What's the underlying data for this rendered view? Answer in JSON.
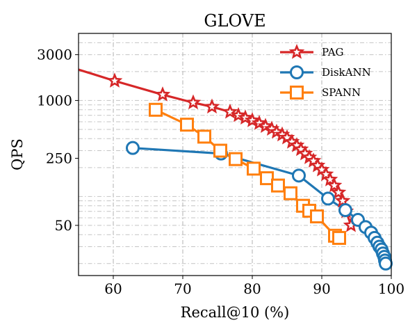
{
  "chart_data": {
    "type": "line",
    "title": "GLOVE",
    "xlabel": "Recall@10 (%)",
    "ylabel": "QPS",
    "xlim": [
      55,
      100
    ],
    "ylim": [
      15,
      5000
    ],
    "yscale": "log",
    "xticks": [
      60,
      70,
      80,
      90,
      100
    ],
    "yticks": [
      {
        "value": 50,
        "label": "50"
      },
      {
        "value": 250,
        "label": "250"
      },
      {
        "value": 1000,
        "label": "1000"
      },
      {
        "value": 3000,
        "label": "3000"
      }
    ],
    "grid": true,
    "legend_position": "top-right",
    "series": [
      {
        "name": "PAG",
        "color": "#d62728",
        "marker": "star",
        "line_start": [
          55,
          2100
        ],
        "x": [
          60.2,
          67.1,
          71.5,
          74.2,
          76.8,
          78.0,
          79.0,
          80.0,
          81.0,
          81.9,
          82.8,
          83.5,
          84.3,
          85.0,
          85.7,
          86.4,
          87.0,
          87.6,
          88.2,
          88.8,
          89.4,
          90.0,
          90.6,
          91.2,
          91.8,
          92.4,
          93.0,
          93.5,
          94.2
        ],
        "y": [
          1600,
          1150,
          950,
          860,
          760,
          700,
          660,
          620,
          580,
          540,
          505,
          470,
          440,
          410,
          370,
          340,
          310,
          280,
          255,
          235,
          210,
          190,
          170,
          150,
          130,
          110,
          90,
          70,
          50
        ]
      },
      {
        "name": "DiskANN",
        "color": "#1f77b4",
        "marker": "circle",
        "x": [
          62.8,
          75.5,
          86.7,
          90.9,
          93.4,
          95.2,
          96.3,
          97.1,
          97.6,
          98.0,
          98.3,
          98.6,
          98.8,
          99.0,
          99.1,
          99.2
        ],
        "y": [
          320,
          280,
          165,
          95,
          72,
          57,
          48,
          42,
          37,
          33,
          30,
          28,
          25.5,
          23.5,
          21.5,
          20
        ]
      },
      {
        "name": "SPANN",
        "color": "#ff7f0e",
        "marker": "square",
        "x": [
          66.1,
          70.6,
          73.1,
          75.4,
          77.6,
          80.2,
          82.1,
          83.7,
          85.5,
          87.3,
          88.2,
          89.3,
          91.9,
          92.5
        ],
        "y": [
          800,
          560,
          420,
          300,
          245,
          195,
          155,
          130,
          108,
          80,
          71,
          62,
          39,
          37
        ]
      }
    ]
  }
}
